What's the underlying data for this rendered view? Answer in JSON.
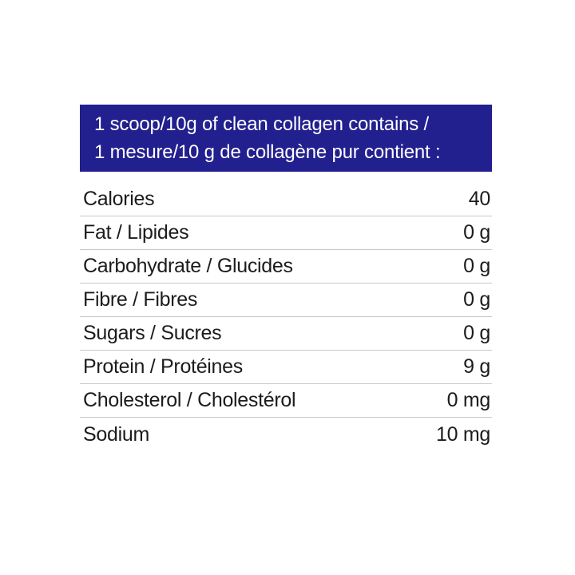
{
  "page": {
    "background_color": "#ffffff"
  },
  "header": {
    "line1": "1 scoop/10g of clean collagen contains /",
    "line2": "1 mesure/10 g de collagène pur contient :",
    "background_color": "#221f8e",
    "text_color": "#ffffff"
  },
  "nutrition_table": {
    "text_color": "#1c1c1c",
    "divider_color": "#c8c8c8",
    "rows": [
      {
        "label": "Calories",
        "value": "40"
      },
      {
        "label": "Fat / Lipides",
        "value": "0 g"
      },
      {
        "label": "Carbohydrate / Glucides",
        "value": "0 g"
      },
      {
        "label": "Fibre / Fibres",
        "value": "0 g"
      },
      {
        "label": "Sugars / Sucres",
        "value": "0 g"
      },
      {
        "label": "Protein / Protéines",
        "value": "9 g"
      },
      {
        "label": "Cholesterol / Cholestérol",
        "value": "0 mg"
      },
      {
        "label": "Sodium",
        "value": "10 mg"
      }
    ]
  }
}
